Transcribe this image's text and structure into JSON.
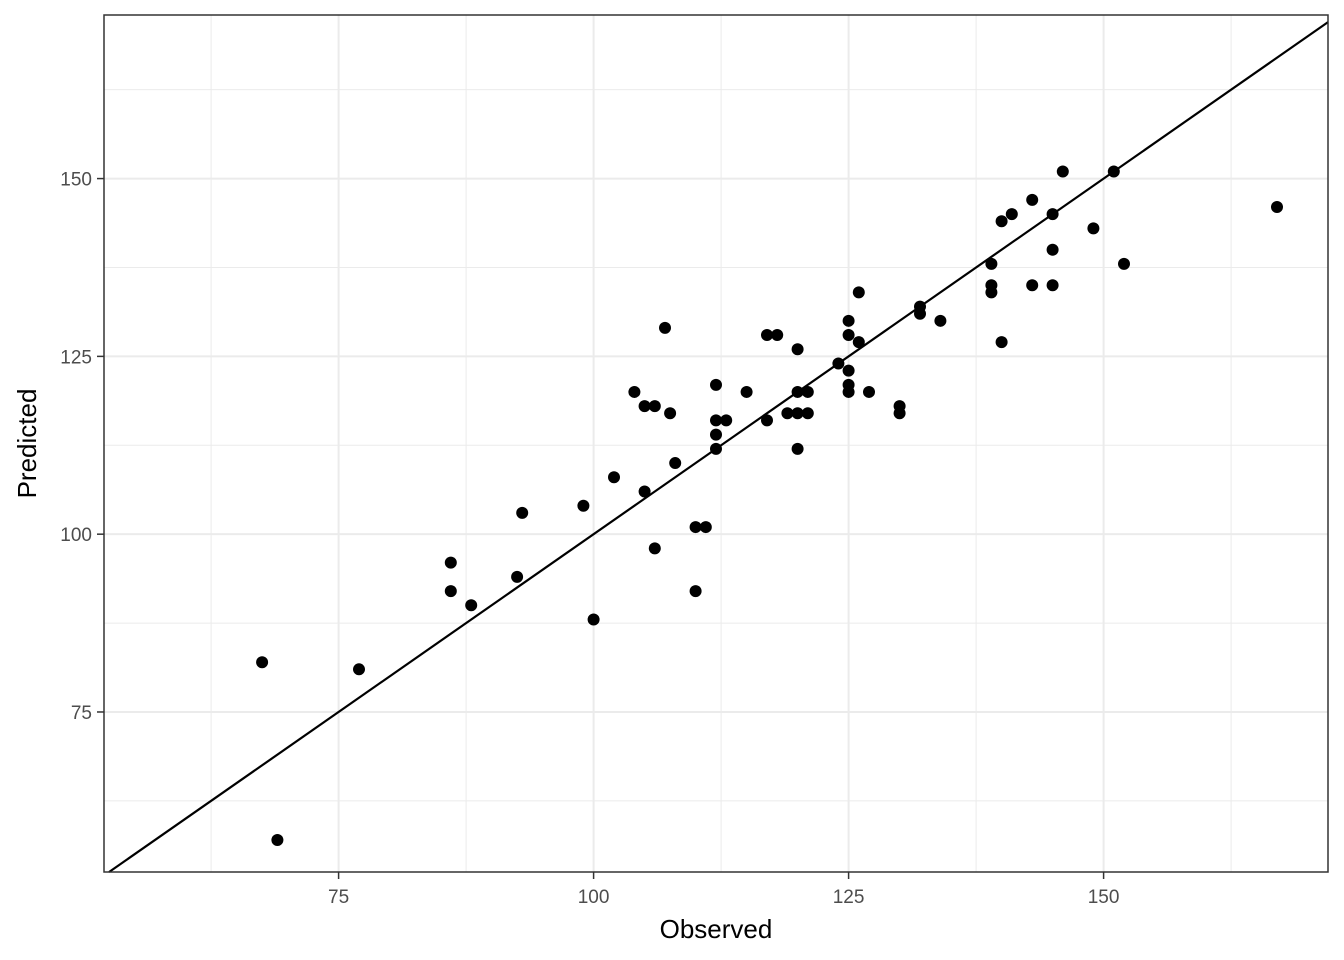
{
  "chart_data": {
    "type": "scatter",
    "xlabel": "Observed",
    "ylabel": "Predicted",
    "xlim": [
      52,
      172
    ],
    "ylim": [
      52.5,
      173
    ],
    "x_ticks": [
      75,
      100,
      125,
      150
    ],
    "y_ticks": [
      75,
      100,
      125,
      150
    ],
    "x_tick_labels": [
      "75",
      "100",
      "125",
      "150"
    ],
    "y_tick_labels": [
      "75",
      "100",
      "125",
      "150"
    ],
    "grid": true,
    "reference_line": "y = x",
    "colors": {
      "points": "#000000",
      "line": "#000000",
      "grid": "#ebebeb",
      "border": "#333333"
    },
    "points": [
      {
        "x": 67.5,
        "y": 82
      },
      {
        "x": 69,
        "y": 57
      },
      {
        "x": 77,
        "y": 81
      },
      {
        "x": 86,
        "y": 96
      },
      {
        "x": 86,
        "y": 92
      },
      {
        "x": 88,
        "y": 90
      },
      {
        "x": 92.5,
        "y": 94
      },
      {
        "x": 93,
        "y": 103
      },
      {
        "x": 99,
        "y": 104
      },
      {
        "x": 100,
        "y": 88
      },
      {
        "x": 102,
        "y": 108
      },
      {
        "x": 104,
        "y": 120
      },
      {
        "x": 105,
        "y": 118
      },
      {
        "x": 105,
        "y": 106
      },
      {
        "x": 106,
        "y": 118
      },
      {
        "x": 106,
        "y": 98
      },
      {
        "x": 107,
        "y": 129
      },
      {
        "x": 107.5,
        "y": 117
      },
      {
        "x": 108,
        "y": 110
      },
      {
        "x": 110,
        "y": 101
      },
      {
        "x": 110,
        "y": 92
      },
      {
        "x": 111,
        "y": 101
      },
      {
        "x": 112,
        "y": 121
      },
      {
        "x": 112,
        "y": 116
      },
      {
        "x": 112,
        "y": 114
      },
      {
        "x": 112,
        "y": 112
      },
      {
        "x": 113,
        "y": 116
      },
      {
        "x": 115,
        "y": 120
      },
      {
        "x": 117,
        "y": 128
      },
      {
        "x": 117,
        "y": 116
      },
      {
        "x": 118,
        "y": 128
      },
      {
        "x": 119,
        "y": 117
      },
      {
        "x": 120,
        "y": 126
      },
      {
        "x": 120,
        "y": 120
      },
      {
        "x": 120,
        "y": 117
      },
      {
        "x": 120,
        "y": 112
      },
      {
        "x": 121,
        "y": 120
      },
      {
        "x": 121,
        "y": 117
      },
      {
        "x": 124,
        "y": 124
      },
      {
        "x": 125,
        "y": 130
      },
      {
        "x": 125,
        "y": 128
      },
      {
        "x": 125,
        "y": 123
      },
      {
        "x": 125,
        "y": 121
      },
      {
        "x": 125,
        "y": 120
      },
      {
        "x": 126,
        "y": 134
      },
      {
        "x": 126,
        "y": 127
      },
      {
        "x": 127,
        "y": 120
      },
      {
        "x": 130,
        "y": 118
      },
      {
        "x": 130,
        "y": 117
      },
      {
        "x": 132,
        "y": 132
      },
      {
        "x": 132,
        "y": 131
      },
      {
        "x": 134,
        "y": 130
      },
      {
        "x": 139,
        "y": 138
      },
      {
        "x": 139,
        "y": 135
      },
      {
        "x": 139,
        "y": 134
      },
      {
        "x": 140,
        "y": 144
      },
      {
        "x": 140,
        "y": 127
      },
      {
        "x": 141,
        "y": 145
      },
      {
        "x": 143,
        "y": 147
      },
      {
        "x": 143,
        "y": 135
      },
      {
        "x": 145,
        "y": 145
      },
      {
        "x": 145,
        "y": 140
      },
      {
        "x": 145,
        "y": 135
      },
      {
        "x": 146,
        "y": 151
      },
      {
        "x": 149,
        "y": 143
      },
      {
        "x": 151,
        "y": 151
      },
      {
        "x": 152,
        "y": 138
      },
      {
        "x": 167,
        "y": 146
      }
    ]
  }
}
